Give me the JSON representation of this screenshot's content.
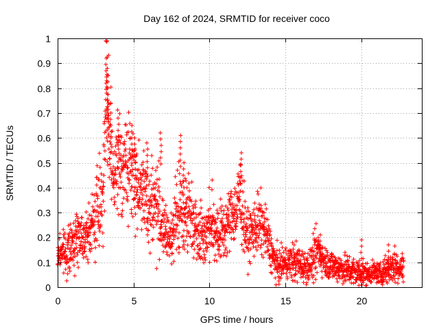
{
  "chart_data": {
    "type": "scatter",
    "title": "Day 162 of 2024, SRMTID for receiver coco",
    "xlabel": "GPS time / hours",
    "ylabel": "SRMTID / TECUs",
    "xlim": [
      0,
      24
    ],
    "ylim": [
      0,
      1
    ],
    "x_ticks": [
      0,
      5,
      10,
      15,
      20
    ],
    "y_ticks": [
      0,
      0.1,
      0.2,
      0.3,
      0.4,
      0.5,
      0.6,
      0.7,
      0.8,
      0.9,
      1
    ],
    "x_tick_labels": [
      "0",
      "5",
      "10",
      "15",
      "20"
    ],
    "y_tick_labels": [
      "0",
      "0.1",
      "0.2",
      "0.3",
      "0.4",
      "0.5",
      "0.6",
      "0.7",
      "0.8",
      "0.9",
      "1"
    ],
    "grid": true,
    "marker": "+",
    "marker_color": "#ff0000",
    "series": [
      {
        "name": "SRMTID",
        "profile_x": [
          0,
          0.3,
          0.6,
          0.9,
          1.2,
          1.5,
          1.8,
          2.1,
          2.4,
          2.7,
          3.0,
          3.1,
          3.25,
          3.4,
          3.6,
          3.8,
          4.0,
          4.3,
          4.6,
          4.9,
          5.2,
          5.5,
          5.8,
          6.1,
          6.4,
          6.7,
          7.0,
          7.3,
          7.6,
          7.9,
          8.2,
          8.5,
          8.8,
          9.1,
          9.4,
          9.7,
          10.0,
          10.3,
          10.6,
          10.9,
          11.2,
          11.5,
          11.8,
          12.0,
          12.2,
          12.5,
          12.8,
          13.1,
          13.4,
          13.7,
          14.0,
          14.3,
          14.6,
          14.9,
          15.2,
          15.5,
          15.8,
          16.1,
          16.4,
          16.7,
          17.0,
          17.2,
          17.4,
          17.7,
          18.0,
          18.3,
          18.6,
          18.9,
          19.2,
          19.5,
          19.8,
          20.1,
          20.4,
          20.7,
          21.0,
          21.3,
          21.6,
          21.9,
          22.2,
          22.5,
          22.8
        ],
        "profile_y": [
          0.13,
          0.15,
          0.14,
          0.16,
          0.2,
          0.22,
          0.2,
          0.22,
          0.27,
          0.33,
          0.4,
          0.55,
          0.75,
          0.6,
          0.45,
          0.45,
          0.5,
          0.48,
          0.5,
          0.45,
          0.42,
          0.4,
          0.35,
          0.33,
          0.35,
          0.3,
          0.22,
          0.2,
          0.22,
          0.3,
          0.3,
          0.32,
          0.28,
          0.25,
          0.22,
          0.2,
          0.25,
          0.24,
          0.22,
          0.22,
          0.25,
          0.3,
          0.3,
          0.38,
          0.3,
          0.2,
          0.22,
          0.25,
          0.25,
          0.22,
          0.16,
          0.1,
          0.08,
          0.1,
          0.1,
          0.1,
          0.1,
          0.09,
          0.08,
          0.1,
          0.12,
          0.16,
          0.12,
          0.1,
          0.09,
          0.08,
          0.08,
          0.07,
          0.07,
          0.06,
          0.06,
          0.06,
          0.05,
          0.06,
          0.06,
          0.05,
          0.07,
          0.08,
          0.09,
          0.08,
          0.08
        ],
        "profile_spread": [
          0.03,
          0.04,
          0.05,
          0.04,
          0.05,
          0.05,
          0.04,
          0.05,
          0.07,
          0.09,
          0.1,
          0.14,
          0.15,
          0.13,
          0.1,
          0.09,
          0.09,
          0.09,
          0.1,
          0.1,
          0.08,
          0.08,
          0.08,
          0.09,
          0.1,
          0.08,
          0.05,
          0.05,
          0.05,
          0.08,
          0.1,
          0.09,
          0.07,
          0.07,
          0.06,
          0.05,
          0.07,
          0.07,
          0.06,
          0.06,
          0.06,
          0.06,
          0.07,
          0.1,
          0.07,
          0.05,
          0.05,
          0.06,
          0.06,
          0.05,
          0.04,
          0.04,
          0.03,
          0.03,
          0.03,
          0.04,
          0.04,
          0.03,
          0.03,
          0.03,
          0.05,
          0.04,
          0.03,
          0.03,
          0.03,
          0.03,
          0.03,
          0.03,
          0.03,
          0.03,
          0.03,
          0.03,
          0.02,
          0.02,
          0.02,
          0.02,
          0.03,
          0.03,
          0.04,
          0.03,
          0.03
        ],
        "peaks": [
          {
            "x": 3.2,
            "y": 0.92
          },
          {
            "x": 3.25,
            "y": 0.88
          },
          {
            "x": 3.3,
            "y": 0.85
          },
          {
            "x": 3.3,
            "y": 0.8
          },
          {
            "x": 3.35,
            "y": 0.74
          },
          {
            "x": 3.5,
            "y": 0.7
          },
          {
            "x": 4.0,
            "y": 0.68
          },
          {
            "x": 4.9,
            "y": 0.65
          },
          {
            "x": 5.1,
            "y": 0.6
          },
          {
            "x": 5.9,
            "y": 0.58
          },
          {
            "x": 6.8,
            "y": 0.62
          },
          {
            "x": 8.1,
            "y": 0.61
          },
          {
            "x": 8.3,
            "y": 0.5
          },
          {
            "x": 12.1,
            "y": 0.54
          },
          {
            "x": 17.3,
            "y": 0.21
          },
          {
            "x": 20.0,
            "y": 0.19
          },
          {
            "x": 21.8,
            "y": 0.17
          }
        ],
        "point_count": 2200,
        "x_max": 22.8
      }
    ]
  }
}
